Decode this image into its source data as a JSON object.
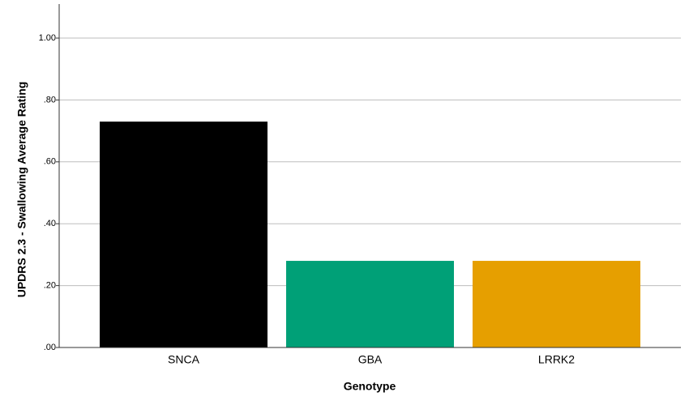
{
  "chart_data": {
    "type": "bar",
    "x_label": "Genotype",
    "y_label": "UPDRS 2.3 - Swallowing Average Rating",
    "categories": [
      "SNCA",
      "GBA",
      "LRRK2"
    ],
    "values": [
      0.73,
      0.28,
      0.28
    ],
    "colors": [
      "#000000",
      "#00a077",
      "#e69f00"
    ],
    "ylim": [
      0,
      1.11
    ],
    "yticks": [
      {
        "value": 0,
        "label": ".00"
      },
      {
        "value": 0.2,
        "label": ".20"
      },
      {
        "value": 0.4,
        "label": ".40"
      },
      {
        "value": 0.6,
        "label": ".60"
      },
      {
        "value": 0.8,
        "label": ".80"
      },
      {
        "value": 1,
        "label": "1.00"
      }
    ],
    "grid": true
  }
}
